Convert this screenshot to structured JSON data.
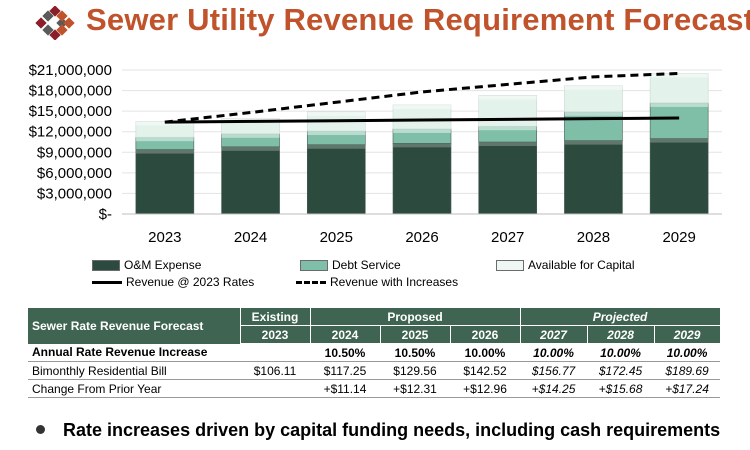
{
  "title": "Sewer Utility Revenue Requirement Forecast",
  "chart_data": {
    "type": "bar",
    "stacked": true,
    "categories": [
      "2023",
      "2024",
      "2025",
      "2026",
      "2027",
      "2028",
      "2029"
    ],
    "series": [
      {
        "name": "O&M Expense",
        "values": [
          9400000,
          9800000,
          10100000,
          10300000,
          10500000,
          10700000,
          11000000
        ],
        "color": "#2c4a3e"
      },
      {
        "name": "Debt Service",
        "values": [
          1800000,
          1900000,
          2000000,
          2100000,
          2300000,
          4200000,
          5200000
        ],
        "color": "#7fbfa8"
      },
      {
        "name": "Available for Capital",
        "values": [
          2300000,
          2200000,
          2800000,
          3500000,
          4500000,
          3800000,
          4300000
        ],
        "color": "#e4f2ec"
      }
    ],
    "lines": [
      {
        "name": "Revenue @ 2023 Rates",
        "values": [
          13400000,
          13500000,
          13600000,
          13700000,
          13800000,
          13900000,
          14000000
        ],
        "style": "solid"
      },
      {
        "name": "Revenue with Increases",
        "values": [
          13400000,
          14800000,
          16300000,
          17800000,
          18900000,
          20000000,
          20500000
        ],
        "style": "dashed"
      }
    ],
    "y_ticks": [
      "$21,000,000",
      "$18,000,000",
      "$15,000,000",
      "$12,000,000",
      "$9,000,000",
      "$6,000,000",
      "$3,000,000",
      "$-"
    ],
    "ylim": [
      0,
      21000000
    ],
    "grid": true,
    "legend_position": "bottom"
  },
  "legend": {
    "om": "O&M Expense",
    "debt": "Debt Service",
    "capital": "Available for Capital",
    "rev_2023": "Revenue @ 2023 Rates",
    "rev_inc": "Revenue with Increases"
  },
  "table": {
    "corner": "Sewer Rate Revenue Forecast",
    "group_existing": "Existing",
    "group_proposed": "Proposed",
    "group_projected": "Projected",
    "years": [
      "2023",
      "2024",
      "2025",
      "2026",
      "2027",
      "2028",
      "2029"
    ],
    "rows": [
      {
        "label": "Annual Rate Revenue Increase",
        "cells": [
          "",
          "10.50%",
          "10.50%",
          "10.00%",
          "10.00%",
          "10.00%",
          "10.00%"
        ]
      },
      {
        "label": "Bimonthly Residential Bill",
        "cells": [
          "$106.11",
          "$117.25",
          "$129.56",
          "$142.52",
          "$156.77",
          "$172.45",
          "$189.69"
        ]
      },
      {
        "label": "Change From Prior Year",
        "cells": [
          "",
          "+$11.14",
          "+$12.31",
          "+$12.96",
          "+$14.25",
          "+$15.68",
          "+$17.24"
        ]
      }
    ]
  },
  "bullet": "Rate increases driven by capital funding needs, including cash requirements"
}
